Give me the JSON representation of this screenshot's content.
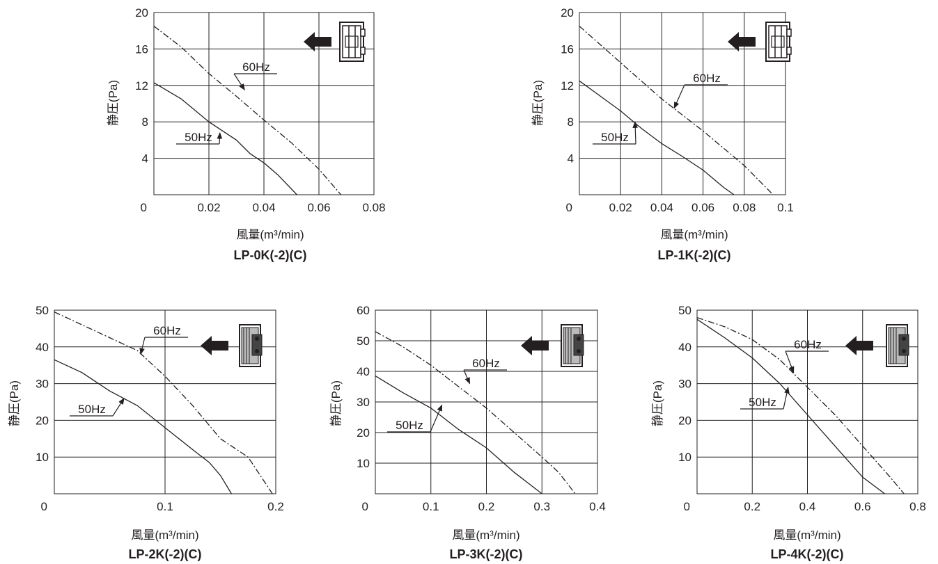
{
  "chart_data": [
    {
      "type": "line",
      "title": "LP-0K(-2)(C)",
      "xlabel": "風量(m³/min)",
      "ylabel": "静圧(Pa)",
      "xlim": [
        0,
        0.08
      ],
      "ylim": [
        0,
        20
      ],
      "xticks": [
        "0.02",
        "0.04",
        "0.06",
        "0.08"
      ],
      "yticks": [
        "4",
        "8",
        "12",
        "16",
        "20"
      ],
      "origin_label": "0",
      "grid": true,
      "series": [
        {
          "name": "60Hz",
          "style": "dash-dot",
          "x": [
            0,
            0.01,
            0.02,
            0.03,
            0.04,
            0.05,
            0.06,
            0.068
          ],
          "y": [
            18.5,
            16.2,
            13.3,
            10.8,
            8.2,
            5.7,
            2.8,
            0
          ]
        },
        {
          "name": "50Hz",
          "style": "solid",
          "x": [
            0,
            0.01,
            0.02,
            0.03,
            0.035,
            0.04,
            0.045,
            0.052
          ],
          "y": [
            12.3,
            10.5,
            8.0,
            6.0,
            4.5,
            3.5,
            2.2,
            0
          ]
        }
      ]
    },
    {
      "type": "line",
      "title": "LP-1K(-2)(C)",
      "xlabel": "風量(m³/min)",
      "ylabel": "静圧(Pa)",
      "xlim": [
        0,
        0.1
      ],
      "ylim": [
        0,
        20
      ],
      "xticks": [
        "0.02",
        "0.04",
        "0.06",
        "0.08",
        "0.1"
      ],
      "yticks": [
        "4",
        "8",
        "12",
        "16",
        "20"
      ],
      "origin_label": "0",
      "grid": true,
      "series": [
        {
          "name": "60Hz",
          "style": "dash-dot",
          "x": [
            0,
            0.02,
            0.04,
            0.06,
            0.08,
            0.094
          ],
          "y": [
            18.5,
            14.5,
            10.5,
            7.0,
            3.2,
            0
          ]
        },
        {
          "name": "50Hz",
          "style": "solid",
          "x": [
            0,
            0.02,
            0.03,
            0.04,
            0.05,
            0.06,
            0.07,
            0.075
          ],
          "y": [
            12.5,
            9.2,
            7.3,
            5.6,
            4.2,
            2.7,
            0.8,
            0
          ]
        }
      ]
    },
    {
      "type": "line",
      "title": "LP-2K(-2)(C)",
      "xlabel": "風量(m³/min)",
      "ylabel": "静圧(Pa)",
      "xlim": [
        0,
        0.2
      ],
      "ylim": [
        0,
        50
      ],
      "xticks": [
        "0.1",
        "0.2"
      ],
      "yticks": [
        "10",
        "20",
        "30",
        "40",
        "50"
      ],
      "origin_label": "0",
      "grid": true,
      "series": [
        {
          "name": "60Hz",
          "style": "dash-dot",
          "x": [
            0,
            0.025,
            0.05,
            0.075,
            0.1,
            0.125,
            0.15,
            0.175,
            0.197
          ],
          "y": [
            49.5,
            46.0,
            42.5,
            39.0,
            32.0,
            24.0,
            15.0,
            10.0,
            0
          ]
        },
        {
          "name": "50Hz",
          "style": "solid",
          "x": [
            0,
            0.025,
            0.05,
            0.075,
            0.1,
            0.125,
            0.14,
            0.15,
            0.16
          ],
          "y": [
            36.5,
            33.0,
            28.0,
            24.0,
            18.0,
            12.0,
            8.5,
            5.0,
            0
          ]
        }
      ]
    },
    {
      "type": "line",
      "title": "LP-3K(-2)(C)",
      "xlabel": "風量(m³/min)",
      "ylabel": "静圧(Pa)",
      "xlim": [
        0,
        0.4
      ],
      "ylim": [
        0,
        60
      ],
      "xticks": [
        "0.1",
        "0.2",
        "0.3",
        "0.4"
      ],
      "yticks": [
        "10",
        "20",
        "30",
        "40",
        "50",
        "60"
      ],
      "origin_label": "0",
      "grid": true,
      "series": [
        {
          "name": "60Hz",
          "style": "dash-dot",
          "x": [
            0,
            0.05,
            0.1,
            0.15,
            0.2,
            0.25,
            0.3,
            0.33,
            0.36
          ],
          "y": [
            53,
            48,
            42,
            35,
            28,
            20,
            12,
            7,
            0
          ]
        },
        {
          "name": "50Hz",
          "style": "solid",
          "x": [
            0,
            0.05,
            0.1,
            0.15,
            0.2,
            0.25,
            0.3
          ],
          "y": [
            38.5,
            33.0,
            28.0,
            21.0,
            15.0,
            7.0,
            0
          ]
        }
      ]
    },
    {
      "type": "line",
      "title": "LP-4K(-2)(C)",
      "xlabel": "風量(m³/min)",
      "ylabel": "静圧(Pa)",
      "xlim": [
        0,
        0.8
      ],
      "ylim": [
        0,
        50
      ],
      "xticks": [
        "0.2",
        "0.4",
        "0.6",
        "0.8"
      ],
      "yticks": [
        "10",
        "20",
        "30",
        "40",
        "50"
      ],
      "origin_label": "0",
      "grid": true,
      "series": [
        {
          "name": "60Hz",
          "style": "dash-dot",
          "x": [
            0,
            0.1,
            0.2,
            0.3,
            0.4,
            0.5,
            0.6,
            0.7,
            0.75
          ],
          "y": [
            48,
            45.5,
            42,
            36.5,
            29,
            21.5,
            13,
            4.5,
            0
          ]
        },
        {
          "name": "50Hz",
          "style": "solid",
          "x": [
            0,
            0.1,
            0.2,
            0.3,
            0.4,
            0.5,
            0.6,
            0.68
          ],
          "y": [
            47.5,
            42.5,
            37,
            30,
            21.5,
            13,
            4.5,
            0
          ]
        }
      ]
    }
  ]
}
